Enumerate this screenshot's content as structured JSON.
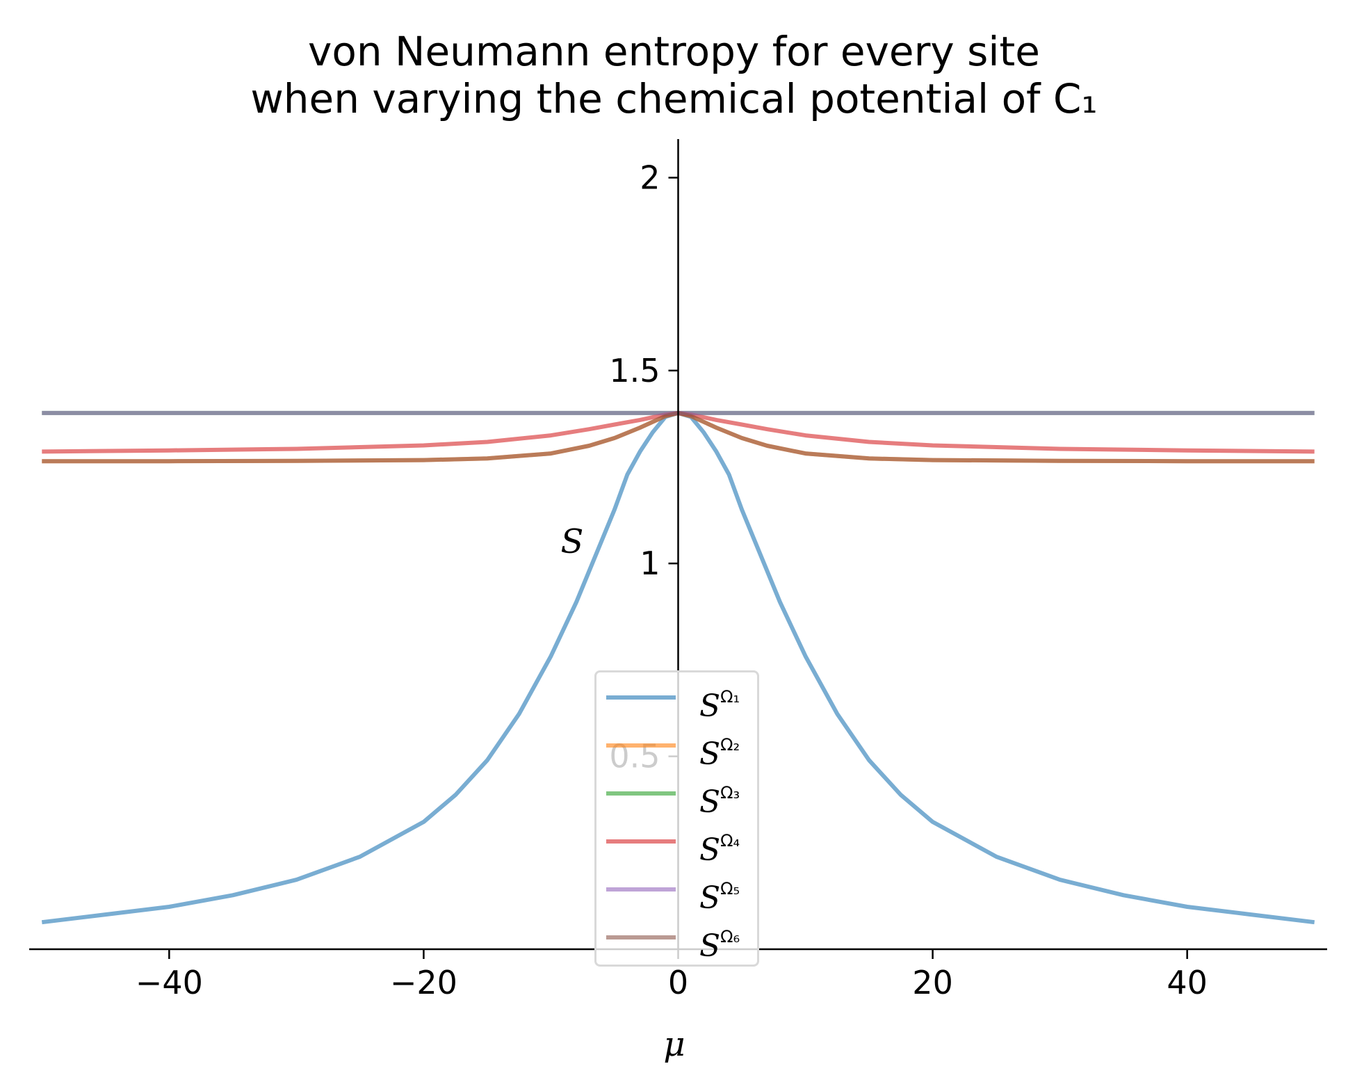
{
  "chart_data": {
    "type": "line",
    "title": [
      "von Neumann entropy for every site",
      "when varying the chemical potential of C₁"
    ],
    "xlabel": "μ",
    "ylabel": "S",
    "xlim": [
      -51,
      51
    ],
    "ylim": [
      0,
      2.1
    ],
    "xticks": [
      -40,
      -20,
      0,
      20,
      40
    ],
    "xtick_labels": [
      "−40",
      "−20",
      "0",
      "20",
      "40"
    ],
    "yticks": [
      0.5,
      1,
      1.5,
      2
    ],
    "ytick_labels": [
      "0.5",
      "1",
      "1.5",
      "2"
    ],
    "spines": "centered y-axis at x=0, x-axis at bottom",
    "grid": false,
    "legend_position": "lower center",
    "series": [
      {
        "name": "S^Ω₁",
        "symbol": "S",
        "sup": "Ω₁",
        "color": "#1f77b4",
        "alpha": 0.6,
        "x": [
          -50,
          -45,
          -40,
          -35,
          -30,
          -25,
          -20,
          -17.5,
          -15,
          -12.5,
          -10,
          -8,
          -6,
          -5,
          -4,
          -3,
          -2,
          -1,
          0,
          1,
          2,
          3,
          4,
          5,
          6,
          8,
          10,
          12.5,
          15,
          17.5,
          20,
          25,
          30,
          35,
          40,
          45,
          50
        ],
        "y": [
          0.07,
          0.09,
          0.11,
          0.14,
          0.18,
          0.24,
          0.33,
          0.4,
          0.49,
          0.61,
          0.76,
          0.9,
          1.06,
          1.14,
          1.23,
          1.29,
          1.34,
          1.38,
          1.39,
          1.38,
          1.34,
          1.29,
          1.23,
          1.14,
          1.06,
          0.9,
          0.76,
          0.61,
          0.49,
          0.4,
          0.33,
          0.24,
          0.18,
          0.14,
          0.11,
          0.09,
          0.07
        ]
      },
      {
        "name": "S^Ω₂",
        "symbol": "S",
        "sup": "Ω₂",
        "color": "#ff7f0e",
        "alpha": 0.6,
        "x": [
          -50,
          -40,
          -30,
          -20,
          -15,
          -10,
          -7,
          -5,
          -3,
          -1,
          0,
          1,
          3,
          5,
          7,
          10,
          15,
          20,
          30,
          40,
          50
        ],
        "y": [
          1.265,
          1.265,
          1.266,
          1.268,
          1.272,
          1.285,
          1.305,
          1.325,
          1.352,
          1.382,
          1.39,
          1.382,
          1.352,
          1.325,
          1.305,
          1.285,
          1.272,
          1.268,
          1.266,
          1.265,
          1.265
        ]
      },
      {
        "name": "S^Ω₃",
        "symbol": "S",
        "sup": "Ω₃",
        "color": "#2ca02c",
        "alpha": 0.6,
        "x": [
          -50,
          50
        ],
        "y": [
          1.39,
          1.39
        ]
      },
      {
        "name": "S^Ω₄",
        "symbol": "S",
        "sup": "Ω₄",
        "color": "#d62728",
        "alpha": 0.6,
        "x": [
          -50,
          -40,
          -30,
          -20,
          -15,
          -10,
          -7,
          -5,
          -3,
          -1,
          0,
          1,
          3,
          5,
          7,
          10,
          15,
          20,
          30,
          40,
          50
        ],
        "y": [
          1.29,
          1.293,
          1.297,
          1.306,
          1.315,
          1.332,
          1.348,
          1.36,
          1.372,
          1.386,
          1.39,
          1.386,
          1.372,
          1.36,
          1.348,
          1.332,
          1.315,
          1.306,
          1.297,
          1.293,
          1.29
        ]
      },
      {
        "name": "S^Ω₅",
        "symbol": "S",
        "sup": "Ω₅",
        "color": "#9467bd",
        "alpha": 0.6,
        "x": [
          -50,
          50
        ],
        "y": [
          1.39,
          1.39
        ]
      },
      {
        "name": "S^Ω₆",
        "symbol": "S",
        "sup": "Ω₆",
        "color": "#8c564b",
        "alpha": 0.6,
        "x": [
          -50,
          -40,
          -30,
          -20,
          -15,
          -10,
          -7,
          -5,
          -3,
          -1,
          0,
          1,
          3,
          5,
          7,
          10,
          15,
          20,
          30,
          40,
          50
        ],
        "y": [
          1.265,
          1.265,
          1.266,
          1.268,
          1.272,
          1.285,
          1.305,
          1.325,
          1.352,
          1.382,
          1.39,
          1.382,
          1.352,
          1.325,
          1.305,
          1.285,
          1.272,
          1.268,
          1.266,
          1.265,
          1.265
        ]
      }
    ]
  }
}
